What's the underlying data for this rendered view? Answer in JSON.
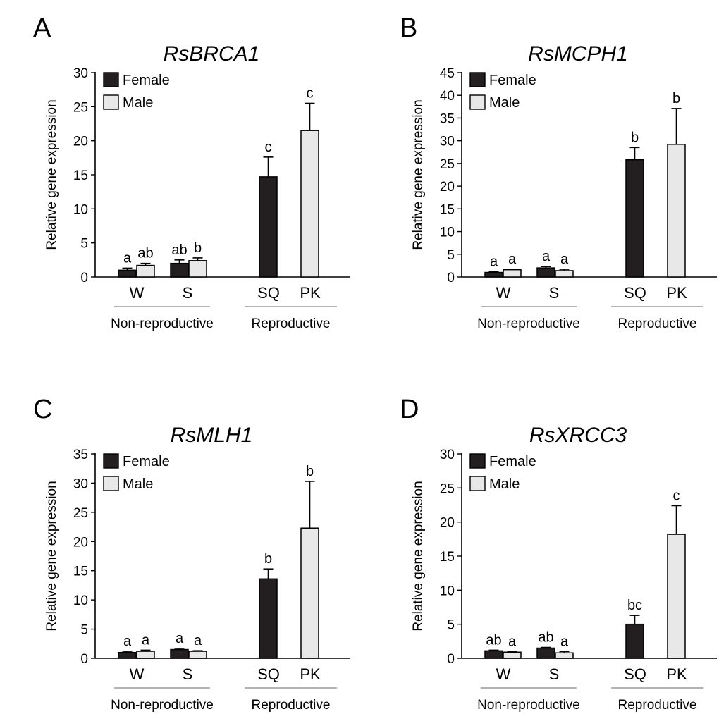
{
  "figure": {
    "legend": [
      {
        "name": "Female",
        "color": "#231f20"
      },
      {
        "name": "Male",
        "color": "#e8e8e8"
      }
    ],
    "ylabel": "Relative gene expression",
    "categories": [
      "W",
      "S",
      "SQ",
      "PK"
    ],
    "groups": [
      {
        "label": "Non-reproductive",
        "categories": [
          "W",
          "S"
        ]
      },
      {
        "label": "Reproductive",
        "categories": [
          "SQ",
          "PK"
        ]
      }
    ]
  },
  "chart_data": [
    {
      "panel": "A",
      "type": "bar",
      "title": "RsBRCA1",
      "ylabel": "Relative gene expression",
      "ylim": [
        0,
        30
      ],
      "yticks": [
        0,
        5,
        10,
        15,
        20,
        25,
        30
      ],
      "categories": [
        "W",
        "S",
        "SQ",
        "PK"
      ],
      "series": [
        {
          "name": "Female",
          "values": [
            1.0,
            2.0,
            14.7,
            null
          ],
          "errors": [
            0.3,
            0.5,
            2.9,
            null
          ],
          "letters": [
            "a",
            "ab",
            "c",
            null
          ]
        },
        {
          "name": "Male",
          "values": [
            1.7,
            2.4,
            null,
            21.5
          ],
          "errors": [
            0.3,
            0.4,
            null,
            4.0
          ],
          "letters": [
            "ab",
            "b",
            null,
            "c"
          ]
        }
      ]
    },
    {
      "panel": "B",
      "type": "bar",
      "title": "RsMCPH1",
      "ylabel": "Relative gene expression",
      "ylim": [
        0,
        45
      ],
      "yticks": [
        0,
        5,
        10,
        15,
        20,
        25,
        30,
        35,
        40,
        45
      ],
      "categories": [
        "W",
        "S",
        "SQ",
        "PK"
      ],
      "series": [
        {
          "name": "Female",
          "values": [
            1.0,
            2.0,
            25.8,
            null
          ],
          "errors": [
            0.2,
            0.3,
            2.7,
            null
          ],
          "letters": [
            "a",
            "a",
            "b",
            null
          ]
        },
        {
          "name": "Male",
          "values": [
            1.6,
            1.4,
            null,
            29.2
          ],
          "errors": [
            0.1,
            0.3,
            null,
            7.9
          ],
          "letters": [
            "a",
            "a",
            null,
            "b"
          ]
        }
      ]
    },
    {
      "panel": "C",
      "type": "bar",
      "title": "RsMLH1",
      "ylabel": "Relative gene expression",
      "ylim": [
        0,
        35
      ],
      "yticks": [
        0,
        5,
        10,
        15,
        20,
        25,
        30,
        35
      ],
      "categories": [
        "W",
        "S",
        "SQ",
        "PK"
      ],
      "series": [
        {
          "name": "Female",
          "values": [
            1.0,
            1.5,
            13.6,
            null
          ],
          "errors": [
            0.2,
            0.2,
            1.7,
            null
          ],
          "letters": [
            "a",
            "a",
            "b",
            null
          ]
        },
        {
          "name": "Male",
          "values": [
            1.2,
            1.2,
            null,
            22.3
          ],
          "errors": [
            0.2,
            0.1,
            null,
            8.0
          ],
          "letters": [
            "a",
            "a",
            null,
            "b"
          ]
        }
      ]
    },
    {
      "panel": "D",
      "type": "bar",
      "title": "RsXRCC3",
      "ylabel": "Relative gene expression",
      "ylim": [
        0,
        30
      ],
      "yticks": [
        0,
        5,
        10,
        15,
        20,
        25,
        30
      ],
      "categories": [
        "W",
        "S",
        "SQ",
        "PK"
      ],
      "series": [
        {
          "name": "Female",
          "values": [
            1.1,
            1.5,
            5.0,
            null
          ],
          "errors": [
            0.1,
            0.1,
            1.3,
            null
          ],
          "letters": [
            "ab",
            "ab",
            "bc",
            null
          ]
        },
        {
          "name": "Male",
          "values": [
            0.9,
            0.8,
            null,
            18.2
          ],
          "errors": [
            0.1,
            0.2,
            null,
            4.2
          ],
          "letters": [
            "a",
            "a",
            null,
            "c"
          ]
        }
      ]
    }
  ]
}
